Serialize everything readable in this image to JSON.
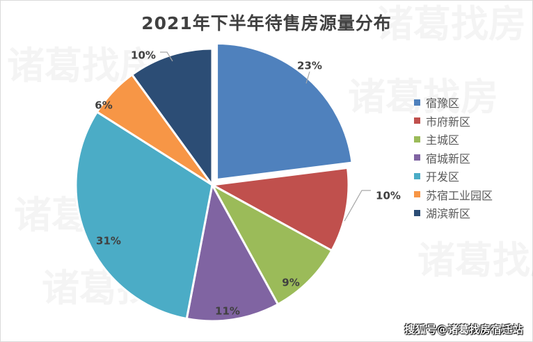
{
  "chart_data": {
    "type": "pie",
    "title": "2021年下半年待售房源量分布",
    "categories": [
      "宿豫区",
      "市府新区",
      "主城区",
      "宿城新区",
      "开发区",
      "苏宿工业园区",
      "湖滨新区"
    ],
    "values": [
      23,
      10,
      9,
      11,
      31,
      6,
      10
    ],
    "labels": [
      "23%",
      "10%",
      "9%",
      "11%",
      "31%",
      "6%",
      "10%"
    ],
    "colors": [
      "#4f81bd",
      "#c0504d",
      "#9bbb59",
      "#8064a2",
      "#4bacc6",
      "#f79646",
      "#2c4d75"
    ],
    "exploded": [
      "宿豫区"
    ],
    "start_angle": "12 o'clock",
    "direction": "clockwise",
    "legend_position": "right"
  },
  "title": "2021年下半年待售房源量分布",
  "legend": [
    {
      "label": "宿豫区",
      "color": "#4f81bd"
    },
    {
      "label": "市府新区",
      "color": "#c0504d"
    },
    {
      "label": "主城区",
      "color": "#9bbb59"
    },
    {
      "label": "宿城新区",
      "color": "#8064a2"
    },
    {
      "label": "开发区",
      "color": "#4bacc6"
    },
    {
      "label": "苏宿工业园区",
      "color": "#f79646"
    },
    {
      "label": "湖滨新区",
      "color": "#2c4d75"
    }
  ],
  "watermark": "诸葛找房",
  "footer": "搜狐号@诸葛找房宿迁站"
}
